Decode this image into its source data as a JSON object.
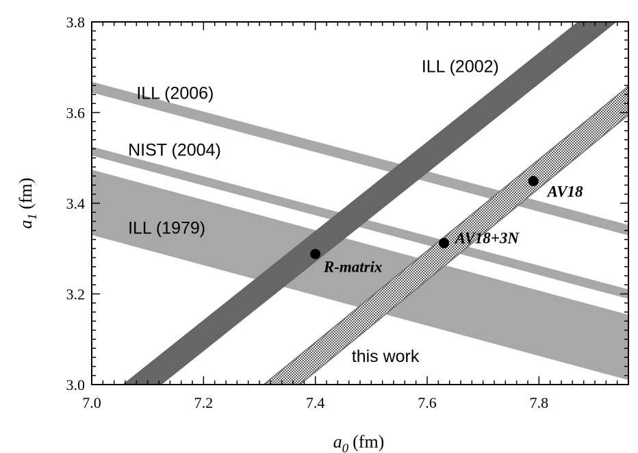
{
  "chart_data": {
    "type": "band-plot",
    "xlabel": {
      "symbol": "a",
      "subscript": "0",
      "unit": "(fm)"
    },
    "ylabel": {
      "symbol": "a",
      "subscript": "1",
      "unit": "(fm)"
    },
    "xlim": [
      7.0,
      7.96
    ],
    "ylim": [
      3.0,
      3.8
    ],
    "xticks": [
      7.0,
      7.2,
      7.4,
      7.6,
      7.8
    ],
    "xtick_labels": [
      "7.0",
      "7.2",
      "7.4",
      "7.6",
      "7.8"
    ],
    "yticks": [
      3.0,
      3.2,
      3.4,
      3.6,
      3.8
    ],
    "ytick_labels": [
      "3.0",
      "3.2",
      "3.4",
      "3.6",
      "3.8"
    ],
    "bands": [
      {
        "name": "ILL (2006)",
        "color": "#a8a8a8",
        "pattern": "solid",
        "lower": [
          [
            7.0,
            3.644
          ],
          [
            7.96,
            3.329
          ]
        ],
        "upper": [
          [
            7.0,
            3.668
          ],
          [
            7.96,
            3.352
          ]
        ],
        "label_at": [
          7.08,
          3.63
        ]
      },
      {
        "name": "NIST (2004)",
        "color": "#a8a8a8",
        "pattern": "solid",
        "lower": [
          [
            7.0,
            3.505
          ],
          [
            7.96,
            3.189
          ]
        ],
        "upper": [
          [
            7.0,
            3.525
          ],
          [
            7.96,
            3.21
          ]
        ],
        "label_at": [
          7.065,
          3.505
        ]
      },
      {
        "name": "ILL (1979)",
        "color": "#a8a8a8",
        "pattern": "solid",
        "lower": [
          [
            7.0,
            3.33
          ],
          [
            7.96,
            3.01
          ]
        ],
        "upper": [
          [
            7.0,
            3.474
          ],
          [
            7.96,
            3.154
          ]
        ],
        "label_at": [
          7.065,
          3.333
        ]
      },
      {
        "name": "ILL (2002)",
        "color": "#666666",
        "pattern": "solid",
        "lower": [
          [
            7.125,
            3.0
          ],
          [
            7.939,
            3.8
          ]
        ],
        "upper": [
          [
            7.055,
            3.0
          ],
          [
            7.869,
            3.8
          ]
        ],
        "label_at": [
          7.59,
          3.689
        ]
      },
      {
        "name": "this work",
        "color": "#777777",
        "pattern": "hatched",
        "lower": [
          [
            7.372,
            3.0
          ],
          [
            7.96,
            3.595
          ]
        ],
        "upper": [
          [
            7.308,
            3.0
          ],
          [
            7.96,
            3.658
          ]
        ],
        "label_at": [
          7.465,
          3.05
        ]
      }
    ],
    "points": [
      {
        "name": "R-matrix",
        "x": 7.4,
        "y": 3.288,
        "label_dx": 0.015,
        "label_dy": -0.04
      },
      {
        "name": "AV18+3N",
        "x": 7.63,
        "y": 3.312,
        "label_dx": 0.02,
        "label_dy": 0.0
      },
      {
        "name": "AV18",
        "x": 7.79,
        "y": 3.449,
        "label_dx": 0.025,
        "label_dy": -0.035
      }
    ],
    "grid": false,
    "legend": "none"
  }
}
